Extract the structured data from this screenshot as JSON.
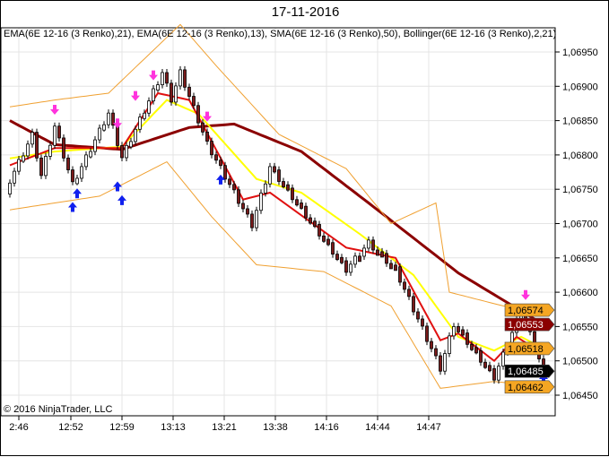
{
  "title": "17-11-2016",
  "legend": "EMA(6E 12-16 (3 Renko),21), EMA(6E 12-16 (3 Renko),13), SMA(6E 12-16 (3 Renko),50), Bollinger(6E 12-16 (3 Renko),2,21)",
  "copyright": "© 2016 NinjaTrader, LLC",
  "chart_data": {
    "type": "candlestick",
    "instrument": "6E 12-16 (3 Renko)",
    "ylim": [
      1.0642,
      1.06985
    ],
    "bar_count": 120,
    "y_ticks": [
      "1,06950",
      "1,06900",
      "1,06850",
      "1,06800",
      "1,06750",
      "1,06700",
      "1,06650",
      "1,06600",
      "1,06550",
      "1,06500",
      "1,06450"
    ],
    "y_tick_values": [
      1.0695,
      1.069,
      1.0685,
      1.068,
      1.0675,
      1.067,
      1.0665,
      1.066,
      1.0655,
      1.065,
      1.0645
    ],
    "x_ticks": [
      {
        "bar": 2,
        "label": "2:46"
      },
      {
        "bar": 13.6,
        "label": "12:52"
      },
      {
        "bar": 25,
        "label": "12:59"
      },
      {
        "bar": 36.4,
        "label": "13:13"
      },
      {
        "bar": 47.8,
        "label": "13:21"
      },
      {
        "bar": 59.2,
        "label": "13:38"
      },
      {
        "bar": 70.6,
        "label": "14:16"
      },
      {
        "bar": 82,
        "label": "14:44"
      },
      {
        "bar": 93.4,
        "label": "14:47"
      }
    ],
    "price_path": [
      [
        0,
        1.06763
      ],
      [
        5,
        1.06829
      ],
      [
        7,
        1.0677
      ],
      [
        10,
        1.06842
      ],
      [
        14,
        1.06757
      ],
      [
        22,
        1.06861
      ],
      [
        25,
        1.06796
      ],
      [
        34,
        1.0692
      ],
      [
        36,
        1.06881
      ],
      [
        38,
        1.0692
      ],
      [
        44,
        1.06816
      ],
      [
        54,
        1.06698
      ],
      [
        58,
        1.06783
      ],
      [
        75,
        1.06633
      ],
      [
        80,
        1.06672
      ],
      [
        86,
        1.06633
      ],
      [
        96,
        1.06489
      ],
      [
        99,
        1.06554
      ],
      [
        108,
        1.06476
      ],
      [
        114,
        1.06574
      ],
      [
        119,
        1.06485
      ]
    ],
    "series": [
      {
        "name": "SMA 50",
        "color": "#8b0000",
        "width": 3,
        "points": [
          [
            0,
            1.0685
          ],
          [
            10,
            1.06815
          ],
          [
            25,
            1.06808
          ],
          [
            40,
            1.0684
          ],
          [
            50,
            1.06845
          ],
          [
            65,
            1.06805
          ],
          [
            80,
            1.0673
          ],
          [
            100,
            1.06628
          ],
          [
            119,
            1.06553
          ]
        ]
      },
      {
        "name": "EMA 21",
        "color": "#ffff00",
        "width": 2,
        "points": [
          [
            0,
            1.06795
          ],
          [
            10,
            1.06805
          ],
          [
            25,
            1.06812
          ],
          [
            35,
            1.0688
          ],
          [
            42,
            1.0686
          ],
          [
            55,
            1.06765
          ],
          [
            65,
            1.06745
          ],
          [
            78,
            1.06685
          ],
          [
            90,
            1.06625
          ],
          [
            100,
            1.06535
          ],
          [
            108,
            1.06515
          ],
          [
            114,
            1.06535
          ],
          [
            119,
            1.06518
          ]
        ]
      },
      {
        "name": "EMA 13",
        "color": "#e01010",
        "width": 2,
        "points": [
          [
            0,
            1.06785
          ],
          [
            10,
            1.0681
          ],
          [
            25,
            1.0681
          ],
          [
            33,
            1.0689
          ],
          [
            40,
            1.0688
          ],
          [
            52,
            1.06735
          ],
          [
            58,
            1.06745
          ],
          [
            75,
            1.06665
          ],
          [
            86,
            1.0665
          ],
          [
            96,
            1.0653
          ],
          [
            100,
            1.0654
          ],
          [
            108,
            1.065
          ],
          [
            113,
            1.06535
          ],
          [
            119,
            1.0651
          ]
        ]
      },
      {
        "name": "Bollinger Upper",
        "color": "#f0a030",
        "width": 1,
        "points": [
          [
            0,
            1.0687
          ],
          [
            10,
            1.0688
          ],
          [
            22,
            1.0689
          ],
          [
            30,
            1.0694
          ],
          [
            38,
            1.0699
          ],
          [
            46,
            1.0693
          ],
          [
            60,
            1.0683
          ],
          [
            75,
            1.0678
          ],
          [
            85,
            1.067
          ],
          [
            95,
            1.0673
          ],
          [
            98,
            1.066
          ],
          [
            110,
            1.0658
          ],
          [
            119,
            1.06574
          ]
        ]
      },
      {
        "name": "Bollinger Lower",
        "color": "#f0a030",
        "width": 1,
        "points": [
          [
            0,
            1.0672
          ],
          [
            10,
            1.0673
          ],
          [
            20,
            1.0674
          ],
          [
            35,
            1.0679
          ],
          [
            45,
            1.0671
          ],
          [
            55,
            1.0664
          ],
          [
            70,
            1.0663
          ],
          [
            85,
            1.0658
          ],
          [
            96,
            1.0646
          ],
          [
            108,
            1.0647
          ],
          [
            119,
            1.06462
          ]
        ]
      }
    ],
    "sell_markers": [
      [
        10,
        1.0686
      ],
      [
        24,
        1.0684
      ],
      [
        28,
        1.0688
      ],
      [
        32,
        1.0691
      ],
      [
        44,
        1.0685
      ],
      [
        115,
        1.0659
      ]
    ],
    "buy_markers": [
      [
        14,
        1.0673
      ],
      [
        15,
        1.0675
      ],
      [
        24,
        1.0676
      ],
      [
        25,
        1.0674
      ],
      [
        47,
        1.0677
      ],
      [
        118,
        1.0649
      ],
      [
        119,
        1.0648
      ]
    ],
    "price_flags": [
      {
        "label": "1,06574",
        "value": 1.06574,
        "bg": "#f5a623",
        "fg": "#000"
      },
      {
        "label": "1,06553",
        "value": 1.06553,
        "bg": "#8b0000",
        "fg": "#fff"
      },
      {
        "label": "1,06518",
        "value": 1.06518,
        "bg": "#f5a623",
        "fg": "#000"
      },
      {
        "label": "1,06485",
        "value": 1.06485,
        "bg": "#000000",
        "fg": "#fff"
      },
      {
        "label": "1,06462",
        "value": 1.06462,
        "bg": "#f5a623",
        "fg": "#000"
      }
    ]
  }
}
